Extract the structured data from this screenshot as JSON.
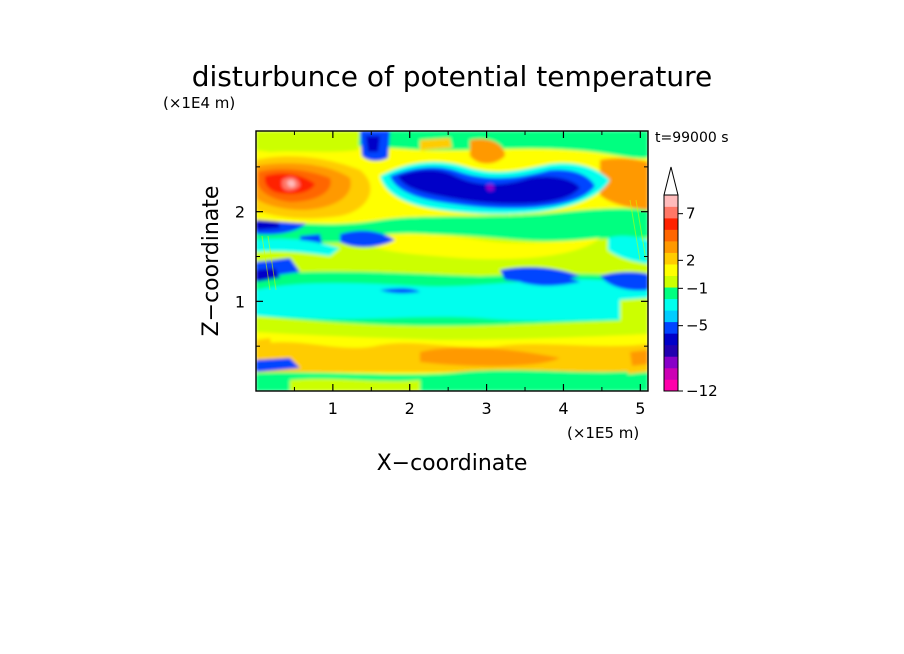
{
  "chart_data": {
    "type": "heatmap",
    "title": "disturbunce of potential temperature",
    "time_label": "t=99000 s",
    "xlabel": "X−coordinate",
    "ylabel": "Z−coordinate",
    "x_unit": "(×1E5 m)",
    "y_unit": "(×1E4 m)",
    "xlim": [
      0,
      5.1
    ],
    "ylim": [
      0,
      2.9
    ],
    "x_ticks": [
      1,
      2,
      3,
      4,
      5
    ],
    "y_ticks": [
      1,
      2
    ],
    "x_tick_labels": [
      "1",
      "2",
      "3",
      "4",
      "5"
    ],
    "y_tick_labels": [
      "1",
      "2"
    ],
    "colorbar": {
      "levels": [
        -12,
        -11,
        -10,
        -9,
        -8,
        -7,
        -6,
        -5,
        -4,
        -3,
        -2,
        -1,
        0,
        1,
        2,
        3,
        4,
        5,
        6,
        7,
        8,
        9
      ],
      "tick_values": [
        -12,
        -5,
        -1,
        2,
        7
      ],
      "tick_labels": [
        "−12",
        "−5",
        "−1",
        "2",
        "7"
      ],
      "colors": [
        "#ff00aa",
        "#cc00b4",
        "#8800c8",
        "#2200b0",
        "#0000c8",
        "#0044ff",
        "#00ccff",
        "#00ffee",
        "#00ff80",
        "#ccff00",
        "#ffff00",
        "#ffcc00",
        "#ff9900",
        "#ff6600",
        "#ff2200",
        "#ff7766",
        "#ffbbbb"
      ],
      "extend": "max"
    },
    "field_description": [
      {
        "x_range": [
          0,
          5.1
        ],
        "z_range": [
          0,
          0.4
        ],
        "value_range": [
          1,
          3
        ]
      },
      {
        "x_range": [
          0,
          5.1
        ],
        "z_range": [
          0.6,
          0.8
        ],
        "value_range": [
          0,
          1
        ]
      },
      {
        "x_range": [
          0,
          5.1
        ],
        "z_range": [
          0.8,
          1.1
        ],
        "value_range": [
          -3,
          -1
        ]
      },
      {
        "x_range": [
          0,
          5.1
        ],
        "z_range": [
          1.4,
          1.9
        ],
        "value_range": [
          1,
          3
        ]
      },
      {
        "x_range": [
          1.5,
          3.5
        ],
        "z_range": [
          2.2,
          2.5
        ],
        "value_range": [
          -6,
          -4
        ]
      },
      {
        "x_range": [
          0,
          1.2
        ],
        "z_range": [
          2.2,
          2.6
        ],
        "value_range": [
          4,
          8
        ]
      }
    ]
  }
}
